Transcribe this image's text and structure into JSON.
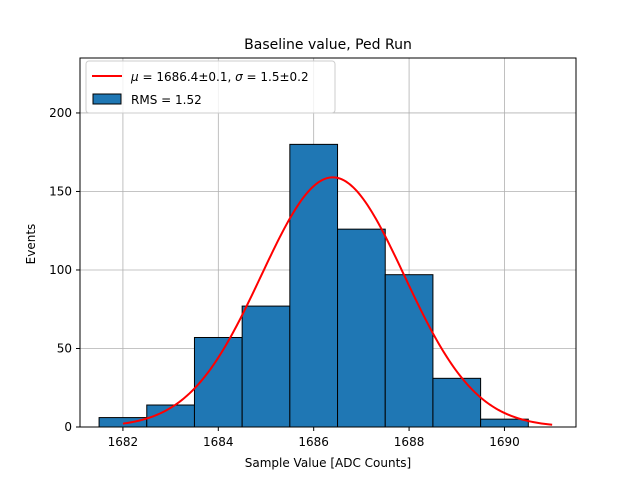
{
  "chart_data": {
    "type": "bar",
    "title": "Baseline value, Ped Run",
    "xlabel": "Sample Value [ADC Counts]",
    "ylabel": "Events",
    "xlim": [
      1681.1,
      1691.5
    ],
    "ylim": [
      0,
      235
    ],
    "xticks": [
      1682,
      1684,
      1686,
      1688,
      1690
    ],
    "yticks": [
      0,
      50,
      100,
      150,
      200
    ],
    "grid": true,
    "legend_position": "top-left",
    "histogram": {
      "name": "RMS = 1.52",
      "bin_edges": [
        1681.5,
        1682.5,
        1683.5,
        1684.5,
        1685.5,
        1686.5,
        1687.5,
        1688.5,
        1689.5,
        1690.5
      ],
      "counts": [
        6,
        14,
        57,
        77,
        180,
        126,
        97,
        31,
        5
      ],
      "color": "#1f77b4",
      "edge_color": "#000000"
    },
    "fit": {
      "name": "μ = 1686.4±0.1, σ = 1.5±0.2",
      "name_parts": {
        "mu_symbol": "μ",
        "mu_value": " = 1686.4±0.1, ",
        "sigma_symbol": "σ",
        "sigma_value": " = 1.5±0.2"
      },
      "type": "gaussian",
      "amplitude": 159,
      "mean": 1686.4,
      "sigma": 1.5,
      "x_range": [
        1682,
        1691
      ],
      "color": "#ff0000"
    }
  }
}
